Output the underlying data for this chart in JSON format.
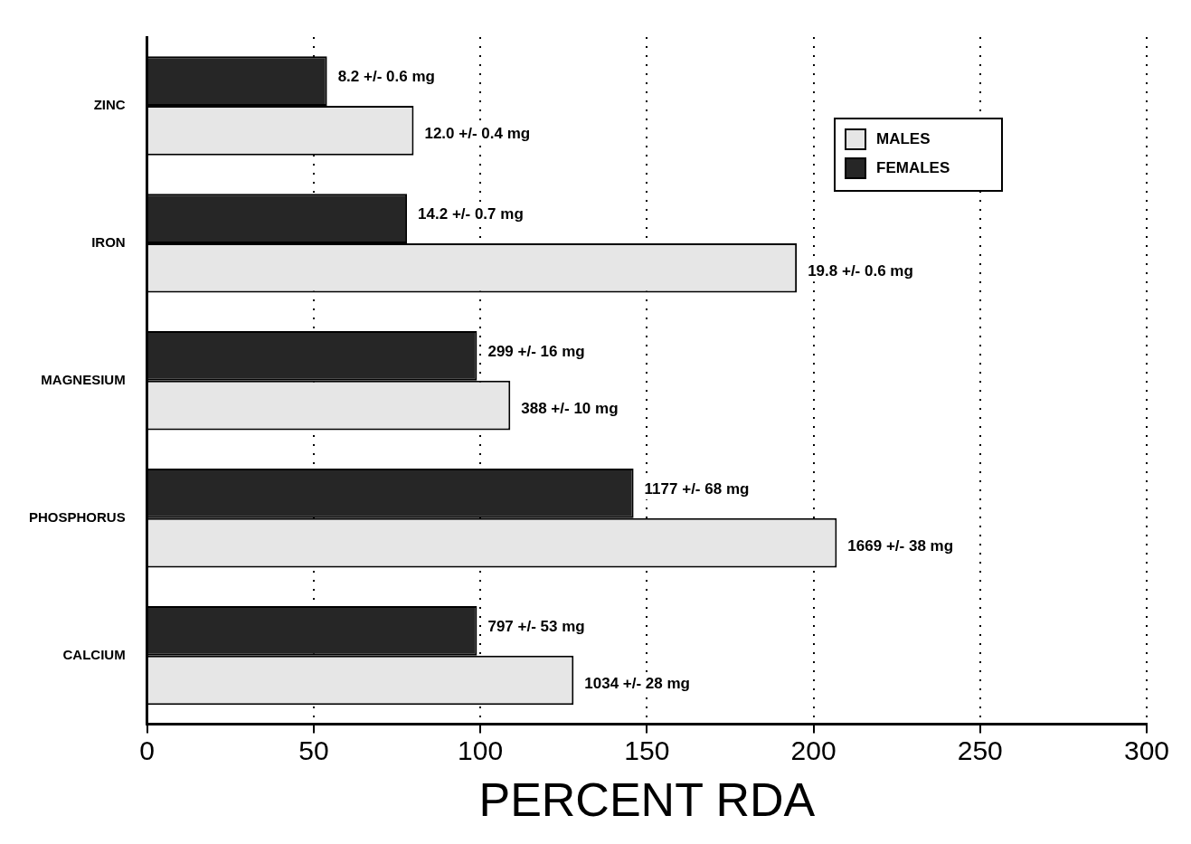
{
  "chart_data": {
    "type": "bar",
    "orientation": "horizontal",
    "xlabel": "PERCENT RDA",
    "categories": [
      "ZINC",
      "IRON",
      "MAGNESIUM",
      "PHOSPHORUS",
      "CALCIUM"
    ],
    "series": [
      {
        "name": "FEMALES",
        "color": "#262626",
        "values": [
          54,
          78,
          99,
          146,
          99
        ]
      },
      {
        "name": "MALES",
        "color": "#e6e6e6",
        "values": [
          80,
          195,
          109,
          207,
          128
        ]
      }
    ],
    "annotations": [
      {
        "text": "8.2 +/- 0.6 mg",
        "x": 54,
        "y": "ZINC"
      },
      {
        "text": "12.0 +/- 0.4 mg",
        "x": 80,
        "y": "ZINC"
      },
      {
        "text": "14.2 +/- 0.7 mg",
        "x": 78,
        "y": "IRON"
      },
      {
        "text": "19.8 +/- 0.6 mg",
        "x": 195,
        "y": "IRON"
      },
      {
        "text": "299 +/- 16 mg",
        "x": 99,
        "y": "MAGNESIUM"
      },
      {
        "text": "388 +/- 10 mg",
        "x": 109,
        "y": "MAGNESIUM"
      },
      {
        "text": "1177 +/- 68 mg",
        "x": 146,
        "y": "PHOSPHORUS"
      },
      {
        "text": "1669 +/- 38 mg",
        "x": 207,
        "y": "PHOSPHORUS"
      },
      {
        "text": "797 +/- 53 mg",
        "x": 99,
        "y": "CALCIUM"
      },
      {
        "text": "1034 +/- 28 mg",
        "x": 128,
        "y": "CALCIUM"
      }
    ],
    "xlim": [
      0,
      300
    ],
    "xticks": [
      0,
      50,
      100,
      150,
      200,
      250,
      300
    ],
    "grid": "x",
    "legend": "top right"
  }
}
